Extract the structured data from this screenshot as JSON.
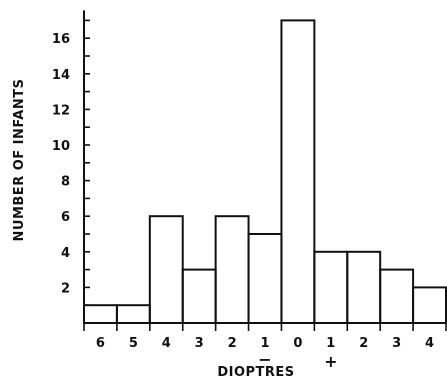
{
  "chart_data": {
    "type": "bar",
    "categories": [
      "6",
      "5",
      "4",
      "3",
      "2",
      "1",
      "0",
      "1",
      "2",
      "3",
      "4"
    ],
    "x_signs": {
      "minus": "−",
      "plus": "+"
    },
    "values": [
      1,
      1,
      6,
      3,
      6,
      5,
      17,
      4,
      4,
      3,
      2
    ],
    "ylabel": "NUMBER OF INFANTS",
    "xlabel": "DIOPTRES",
    "y_ticks": [
      "2",
      "4",
      "6",
      "8",
      "10",
      "12",
      "14",
      "16"
    ],
    "ylim": [
      0,
      17
    ],
    "grid": false,
    "legend": "none"
  }
}
